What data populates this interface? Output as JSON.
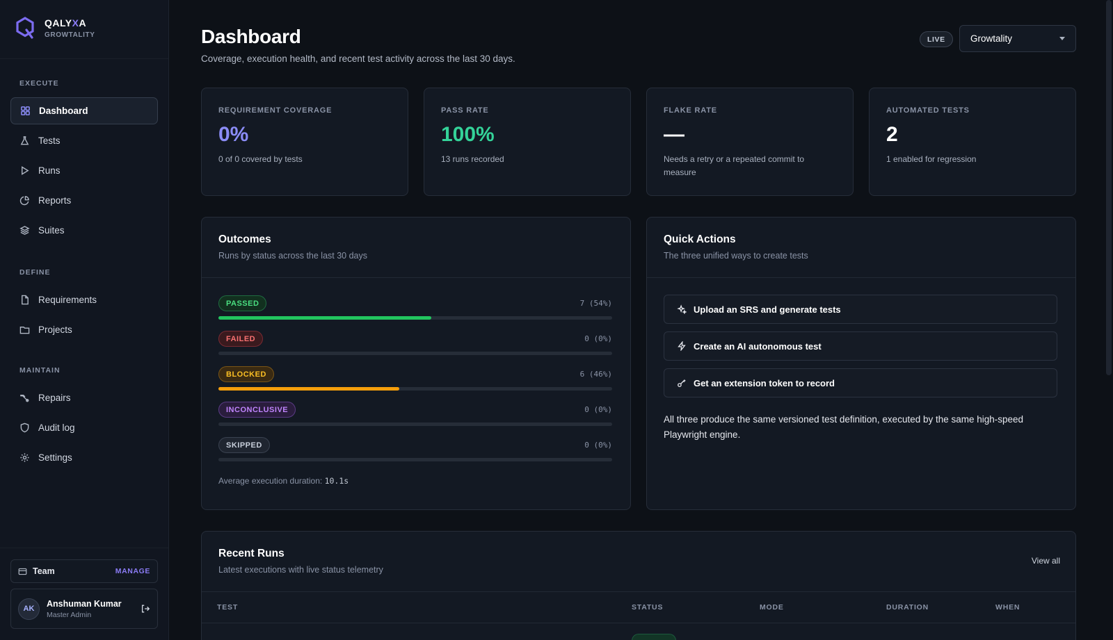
{
  "brand": {
    "name_prefix": "QALY",
    "name_x": "X",
    "name_suffix": "A",
    "workspace": "GROWTALITY"
  },
  "sidebar": {
    "sections": [
      {
        "label": "EXECUTE"
      },
      {
        "label": "DEFINE"
      },
      {
        "label": "MAINTAIN"
      }
    ],
    "items": [
      {
        "label": "Dashboard",
        "icon": "grid-icon",
        "active": true
      },
      {
        "label": "Tests",
        "icon": "flask-icon"
      },
      {
        "label": "Runs",
        "icon": "play-icon"
      },
      {
        "label": "Reports",
        "icon": "pie-chart-icon"
      },
      {
        "label": "Suites",
        "icon": "layers-icon"
      },
      {
        "label": "Requirements",
        "icon": "file-icon"
      },
      {
        "label": "Projects",
        "icon": "folder-icon"
      },
      {
        "label": "Repairs",
        "icon": "wrench-icon"
      },
      {
        "label": "Audit log",
        "icon": "shield-icon"
      },
      {
        "label": "Settings",
        "icon": "gear-icon"
      }
    ],
    "team": {
      "label": "Team",
      "manage": "MANAGE"
    },
    "user": {
      "initials": "AK",
      "name": "Anshuman Kumar",
      "role": "Master Admin"
    }
  },
  "header": {
    "title": "Dashboard",
    "subtitle": "Coverage, execution health, and recent test activity across the last 30 days.",
    "live": "LIVE",
    "org": "Growtality"
  },
  "stats": [
    {
      "label": "REQUIREMENT COVERAGE",
      "value": "0%",
      "desc": "0 of 0 covered by tests",
      "color": "#8b8cf6"
    },
    {
      "label": "PASS RATE",
      "value": "100%",
      "desc": "13 runs recorded",
      "color": "#34d399"
    },
    {
      "label": "FLAKE RATE",
      "value": "—",
      "desc": "Needs a retry or a repeated commit to measure",
      "color": "#ffffff"
    },
    {
      "label": "AUTOMATED TESTS",
      "value": "2",
      "desc": "1 enabled for regression",
      "color": "#ffffff"
    }
  ],
  "outcomes": {
    "title": "Outcomes",
    "subtitle": "Runs by status across the last 30 days",
    "rows": [
      {
        "label": "PASSED",
        "count": "7 (54%)",
        "fraction": 0.54,
        "color": "#22c55e",
        "pill_bg": "#12301f",
        "pill_border": "#1f6b41",
        "pill_text": "#4ade80"
      },
      {
        "label": "FAILED",
        "count": "0 (0%)",
        "fraction": 0,
        "color": "#ef4444",
        "pill_bg": "#3a1a1e",
        "pill_border": "#7a2a33",
        "pill_text": "#f87171"
      },
      {
        "label": "BLOCKED",
        "count": "6 (46%)",
        "fraction": 0.46,
        "color": "#f59e0b",
        "pill_bg": "#3a2a12",
        "pill_border": "#7a5516",
        "pill_text": "#fbbf24"
      },
      {
        "label": "INCONCLUSIVE",
        "count": "0 (0%)",
        "fraction": 0,
        "color": "#a855f7",
        "pill_bg": "#2a1d3d",
        "pill_border": "#5b3b86",
        "pill_text": "#c084fc"
      },
      {
        "label": "SKIPPED",
        "count": "0 (0%)",
        "fraction": 0,
        "color": "#6b7280",
        "pill_bg": "#1f2530",
        "pill_border": "#3a4250",
        "pill_text": "#c8cfdb"
      }
    ],
    "avg_label": "Average execution duration:",
    "avg_value": "10.1s"
  },
  "quick_actions": {
    "title": "Quick Actions",
    "subtitle": "The three unified ways to create tests",
    "actions": [
      {
        "label": "Upload an SRS and generate tests",
        "icon": "sparkles-icon"
      },
      {
        "label": "Create an AI autonomous test",
        "icon": "lightning-icon"
      },
      {
        "label": "Get an extension token to record",
        "icon": "key-icon"
      }
    ],
    "note": "All three produce the same versioned test definition, executed by the same high-speed Playwright engine."
  },
  "recent_runs": {
    "title": "Recent Runs",
    "subtitle": "Latest executions with live status telemetry",
    "view_all": "View all",
    "columns": [
      "TEST",
      "STATUS",
      "MODE",
      "DURATION",
      "WHEN"
    ]
  }
}
